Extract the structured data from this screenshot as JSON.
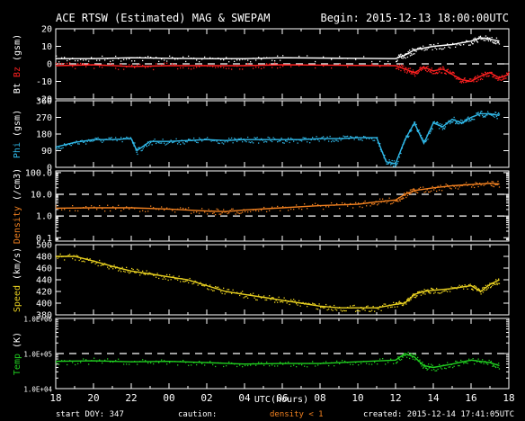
{
  "header": {
    "title": "ACE RTSW (Estimated) MAG & SWEPAM",
    "begin": "Begin: 2015-12-13 18:00:00UTC"
  },
  "footer": {
    "start_doy": "start DOY: 347",
    "caution_label": "caution:",
    "caution_text": "density < 1",
    "created": "created: 2015-12-14 17:41:05UTC"
  },
  "colors": {
    "background": "#000000",
    "frame": "#ffffff",
    "bt": "#ffffff",
    "bz": "#ff2020",
    "phi": "#30b8e8",
    "density": "#f08020",
    "speed": "#e8d020",
    "temp": "#20d020",
    "caution": "#f08020"
  },
  "chart_data": {
    "type": "line",
    "x_axis": {
      "label": "UTC(hours)",
      "ticks": [
        "18",
        "20",
        "22",
        "00",
        "02",
        "04",
        "06",
        "08",
        "10",
        "12",
        "14",
        "16",
        "18"
      ],
      "range_hours": [
        0,
        24
      ]
    },
    "panels": [
      {
        "id": "mag",
        "ylabel_parts": [
          "Bt",
          "Bz",
          "(gsm)"
        ],
        "ylim": [
          -20,
          20
        ],
        "yticks": [
          "20",
          "10",
          "0",
          "-10",
          "-20"
        ],
        "ref_lines": [
          0
        ],
        "series": [
          {
            "name": "Bt",
            "color": "bt",
            "points": [
              [
                0,
                3
              ],
              [
                2,
                3
              ],
              [
                4,
                3.5
              ],
              [
                6,
                3.2
              ],
              [
                8,
                3
              ],
              [
                10,
                3
              ],
              [
                12,
                3.5
              ],
              [
                18,
                3
              ],
              [
                18.5,
                5
              ],
              [
                19,
                8
              ],
              [
                20,
                10
              ],
              [
                21,
                11
              ],
              [
                22,
                13
              ],
              [
                22.5,
                15
              ],
              [
                23,
                14
              ],
              [
                23.5,
                13
              ]
            ]
          },
          {
            "name": "Bz",
            "color": "bz",
            "points": [
              [
                0,
                -1
              ],
              [
                2,
                -0.5
              ],
              [
                4,
                -1.5
              ],
              [
                6,
                -1
              ],
              [
                8,
                -1
              ],
              [
                10,
                -1
              ],
              [
                12,
                -0.5
              ],
              [
                18,
                -1
              ],
              [
                18.5,
                -3
              ],
              [
                19,
                -5
              ],
              [
                19.5,
                -2
              ],
              [
                20,
                -4
              ],
              [
                20.5,
                -3
              ],
              [
                21,
                -6
              ],
              [
                21.5,
                -9
              ],
              [
                22,
                -10
              ],
              [
                22.5,
                -7
              ],
              [
                23,
                -5
              ],
              [
                23.5,
                -8
              ],
              [
                24,
                -6
              ]
            ]
          }
        ]
      },
      {
        "id": "phi",
        "ylabel_parts": [
          "Phi",
          "(gsm)"
        ],
        "ylim": [
          0,
          360
        ],
        "yticks": [
          "360",
          "270",
          "180",
          "90",
          "0"
        ],
        "ref_lines": [],
        "series": [
          {
            "name": "Phi",
            "color": "phi",
            "points": [
              [
                0,
                110
              ],
              [
                1,
                135
              ],
              [
                2,
                150
              ],
              [
                3,
                150
              ],
              [
                4,
                155
              ],
              [
                4.3,
                90
              ],
              [
                5,
                140
              ],
              [
                6,
                140
              ],
              [
                7,
                145
              ],
              [
                8,
                150
              ],
              [
                9,
                145
              ],
              [
                10,
                150
              ],
              [
                11,
                150
              ],
              [
                12,
                150
              ],
              [
                13,
                150
              ],
              [
                14,
                155
              ],
              [
                15,
                155
              ],
              [
                16,
                160
              ],
              [
                17,
                160
              ],
              [
                17.5,
                30
              ],
              [
                18,
                20
              ],
              [
                18.5,
                150
              ],
              [
                19,
                240
              ],
              [
                19.5,
                130
              ],
              [
                20,
                240
              ],
              [
                20.5,
                220
              ],
              [
                21,
                260
              ],
              [
                21.5,
                240
              ],
              [
                22,
                270
              ],
              [
                22.5,
                290
              ],
              [
                23,
                290
              ],
              [
                23.5,
                280
              ]
            ]
          }
        ]
      },
      {
        "id": "density",
        "ylabel_parts": [
          "Density",
          "(/cm3)"
        ],
        "scale": "log",
        "ylim": [
          0.07,
          120
        ],
        "yticks": [
          "100.0",
          "10.0",
          "1.0",
          "0.1"
        ],
        "ref_lines": [
          10,
          1
        ],
        "series": [
          {
            "name": "Density",
            "color": "density",
            "points": [
              [
                0,
                2.3
              ],
              [
                2,
                2.4
              ],
              [
                4,
                2.4
              ],
              [
                6,
                2.1
              ],
              [
                8,
                1.7
              ],
              [
                9,
                1.6
              ],
              [
                10,
                1.9
              ],
              [
                12,
                2.4
              ],
              [
                14,
                3
              ],
              [
                16,
                3.5
              ],
              [
                17,
                4.5
              ],
              [
                18,
                5.5
              ],
              [
                18.5,
                10
              ],
              [
                19,
                15
              ],
              [
                20,
                20
              ],
              [
                21,
                25
              ],
              [
                22,
                28
              ],
              [
                23,
                32
              ],
              [
                23.5,
                30
              ]
            ]
          }
        ]
      },
      {
        "id": "speed",
        "ylabel_parts": [
          "Speed",
          "(km/s)"
        ],
        "ylim": [
          380,
          500
        ],
        "yticks": [
          "500",
          "480",
          "460",
          "440",
          "420",
          "400",
          "380"
        ],
        "ref_lines": [],
        "series": [
          {
            "name": "Speed",
            "color": "speed",
            "points": [
              [
                0,
                480
              ],
              [
                1,
                480
              ],
              [
                2,
                472
              ],
              [
                3,
                463
              ],
              [
                4,
                455
              ],
              [
                5,
                450
              ],
              [
                6,
                445
              ],
              [
                7,
                440
              ],
              [
                8,
                430
              ],
              [
                9,
                420
              ],
              [
                10,
                415
              ],
              [
                11,
                410
              ],
              [
                12,
                405
              ],
              [
                13,
                400
              ],
              [
                14,
                395
              ],
              [
                15,
                392
              ],
              [
                16,
                392
              ],
              [
                17,
                392
              ],
              [
                18,
                398
              ],
              [
                18.5,
                400
              ],
              [
                19,
                415
              ],
              [
                19.5,
                420
              ],
              [
                20,
                422
              ],
              [
                21,
                425
              ],
              [
                22,
                430
              ],
              [
                22.5,
                420
              ],
              [
                23,
                432
              ],
              [
                23.5,
                440
              ]
            ]
          }
        ]
      },
      {
        "id": "temp",
        "ylabel_parts": [
          "Temp",
          "(K)"
        ],
        "scale": "log",
        "ylim": [
          10000,
          1000000
        ],
        "yticks": [
          "1.0E+06",
          "1.0E+05",
          "1.0E+04"
        ],
        "ref_lines": [
          100000
        ],
        "series": [
          {
            "name": "Temp",
            "color": "temp",
            "points": [
              [
                0,
                60000
              ],
              [
                2,
                62000
              ],
              [
                4,
                58000
              ],
              [
                6,
                60000
              ],
              [
                8,
                55000
              ],
              [
                10,
                50000
              ],
              [
                12,
                52000
              ],
              [
                14,
                52000
              ],
              [
                16,
                58000
              ],
              [
                18,
                65000
              ],
              [
                18.5,
                100000
              ],
              [
                19,
                80000
              ],
              [
                19.5,
                45000
              ],
              [
                20,
                40000
              ],
              [
                21,
                50000
              ],
              [
                22,
                65000
              ],
              [
                23,
                55000
              ],
              [
                23.5,
                45000
              ]
            ]
          }
        ]
      }
    ]
  }
}
